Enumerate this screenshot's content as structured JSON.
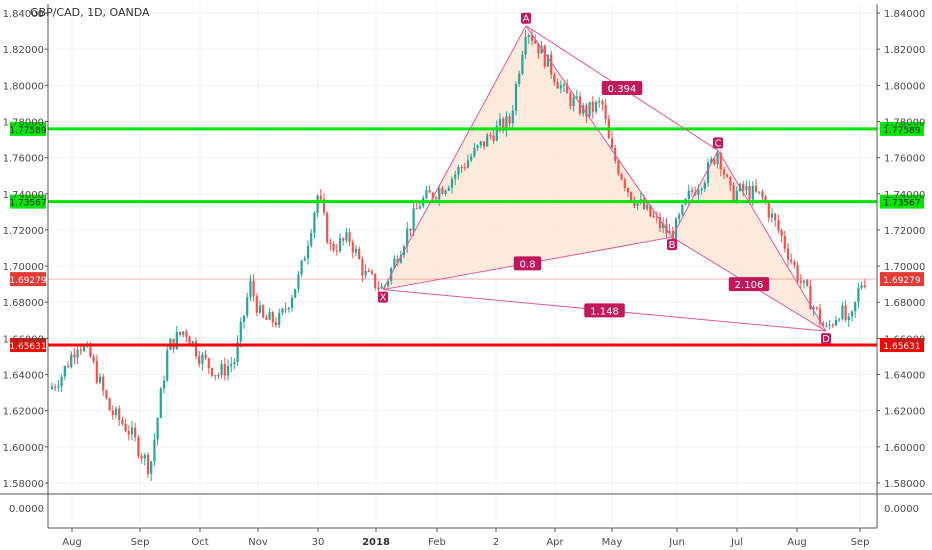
{
  "chart_data": {
    "type": "candlestick",
    "title": "GBP/CAD, 1D, OANDA",
    "y_ticks": [
      "1.84000",
      "1.82000",
      "1.80000",
      "1.78000",
      "1.76000",
      "1.74000",
      "1.72000",
      "1.70000",
      "1.68000",
      "1.66000",
      "1.64000",
      "1.62000",
      "1.60000",
      "1.58000"
    ],
    "ylim": [
      1.575,
      1.845
    ],
    "indicator_tick": "0.0000",
    "x_ticks": [
      {
        "label": "Aug",
        "bold": false
      },
      {
        "label": "Sep",
        "bold": false
      },
      {
        "label": "Oct",
        "bold": false
      },
      {
        "label": "Nov",
        "bold": false
      },
      {
        "label": "30",
        "bold": false
      },
      {
        "label": "2018",
        "bold": true
      },
      {
        "label": "Feb",
        "bold": false
      },
      {
        "label": "2",
        "bold": false
      },
      {
        "label": "Apr",
        "bold": false
      },
      {
        "label": "May",
        "bold": false
      },
      {
        "label": "Jun",
        "bold": false
      },
      {
        "label": "Jul",
        "bold": false
      },
      {
        "label": "Aug",
        "bold": false
      },
      {
        "label": "Sep",
        "bold": false
      }
    ],
    "horizontal_levels": [
      {
        "value": 1.77589,
        "label": "1.77589",
        "color": "#00e600"
      },
      {
        "value": 1.73567,
        "label": "1.73567",
        "color": "#00e600"
      },
      {
        "value": 1.65631,
        "label": "1.65631",
        "color": "#ff0000"
      }
    ],
    "last_price": {
      "value": 1.69279,
      "label": "1.69279",
      "color": "#e53935"
    },
    "pattern": {
      "points": [
        {
          "name": "X",
          "price": 1.687
        },
        {
          "name": "A",
          "price": 1.833
        },
        {
          "name": "B",
          "price": 1.716
        },
        {
          "name": "C",
          "price": 1.764
        },
        {
          "name": "D",
          "price": 1.664
        }
      ],
      "ratios": [
        "0.394",
        "0.8",
        "2.106",
        "1.148"
      ],
      "fill_color": "#fbe8d6",
      "line_color": "#e05a9a"
    },
    "colors": {
      "up": "#26a69a",
      "down": "#ef5350"
    }
  }
}
